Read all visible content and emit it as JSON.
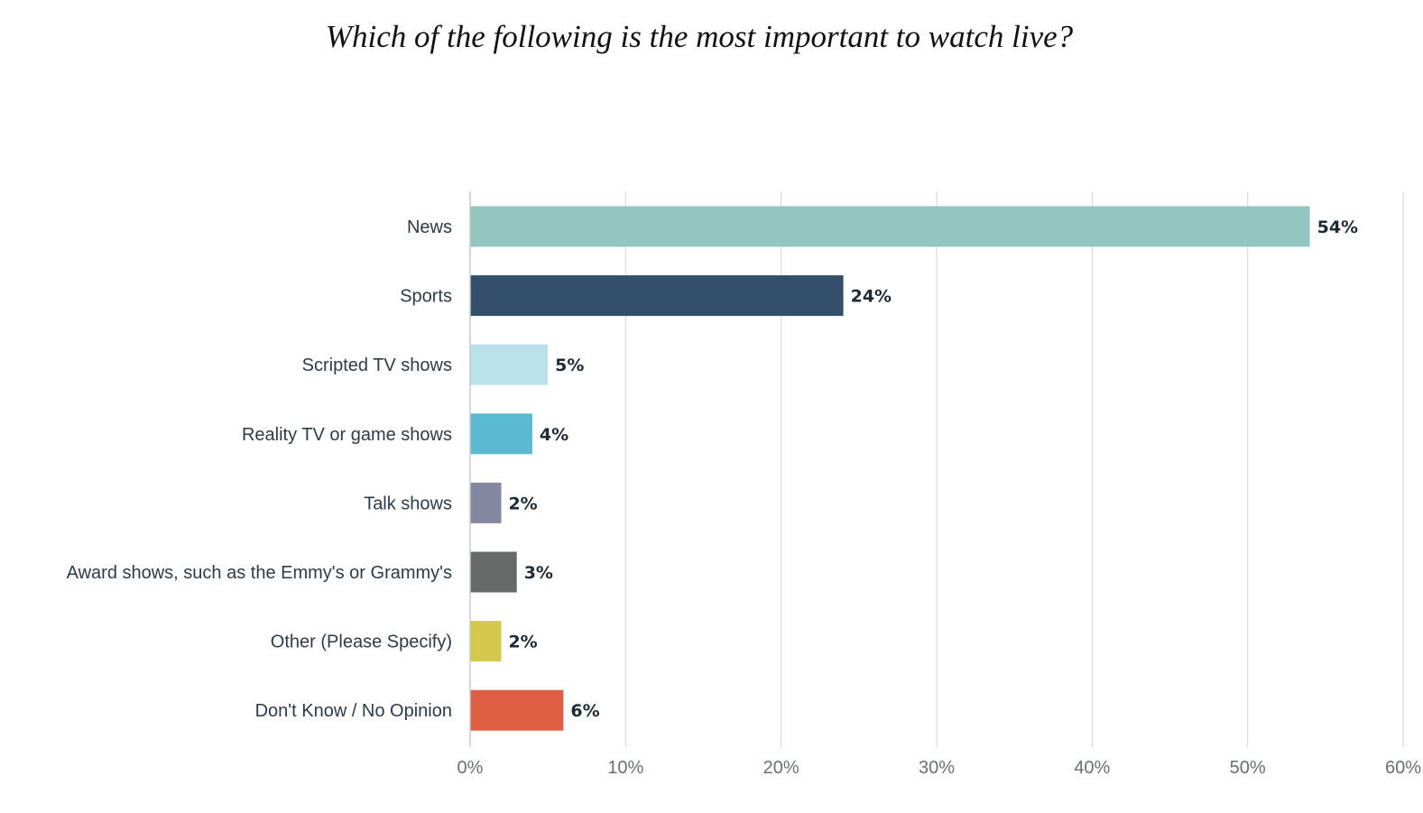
{
  "chart_data": {
    "type": "bar",
    "orientation": "horizontal",
    "title": "Which of the following is the most important to watch live?",
    "categories": [
      "News",
      "Sports",
      "Scripted TV shows",
      "Reality TV or game shows",
      "Talk shows",
      "Award shows, such as the Emmy's or Grammy's",
      "Other (Please Specify)",
      "Don't Know / No Opinion"
    ],
    "values": [
      54,
      24,
      5,
      4,
      2,
      3,
      2,
      6
    ],
    "value_labels": [
      "54%",
      "24%",
      "5%",
      "4%",
      "2%",
      "3%",
      "2%",
      "6%"
    ],
    "colors": [
      "#93c6c0",
      "#344f6b",
      "#bbe1eb",
      "#5bbad2",
      "#8387a0",
      "#686a6a",
      "#d4c94d",
      "#de5f43"
    ],
    "xlim": [
      0,
      60
    ],
    "xticks": [
      0,
      10,
      20,
      30,
      40,
      50,
      60
    ],
    "xtick_labels": [
      "0%",
      "10%",
      "20%",
      "30%",
      "40%",
      "50%",
      "60%"
    ],
    "xlabel": "",
    "ylabel": "",
    "grid": true
  }
}
